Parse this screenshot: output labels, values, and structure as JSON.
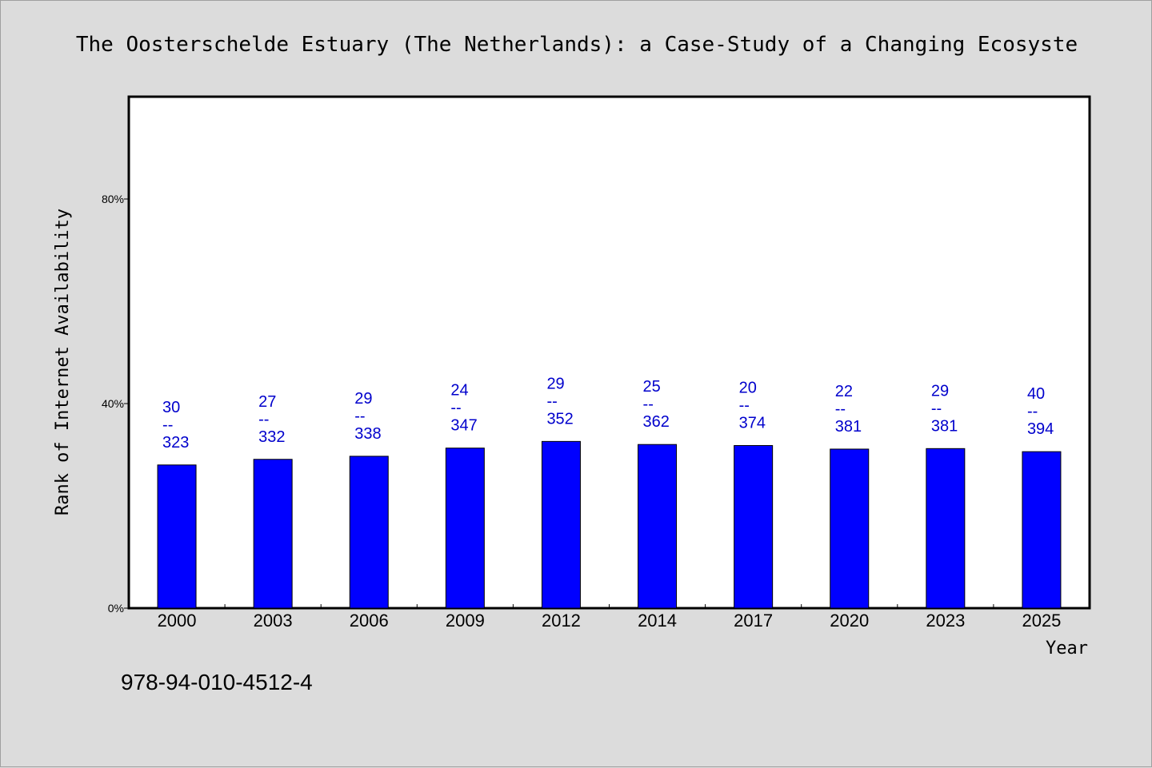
{
  "chart_data": {
    "type": "bar",
    "title": "The Oosterschelde Estuary (The Netherlands): a Case-Study of a Changing Ecosyste",
    "xlabel": "Year",
    "ylabel": "Rank of Internet Availability",
    "categories": [
      "2000",
      "2003",
      "2006",
      "2009",
      "2012",
      "2014",
      "2017",
      "2020",
      "2023",
      "2025"
    ],
    "values": [
      28.0,
      29.1,
      29.7,
      31.3,
      32.6,
      32.0,
      31.8,
      31.1,
      31.2,
      30.6
    ],
    "label_top": [
      "30",
      "27",
      "29",
      "24",
      "29",
      "25",
      "20",
      "22",
      "29",
      "40"
    ],
    "label_sep": "--",
    "label_bottom": [
      "323",
      "332",
      "338",
      "347",
      "352",
      "362",
      "374",
      "381",
      "381",
      "394"
    ],
    "ylim": [
      0,
      100
    ],
    "yticks": [
      {
        "value": 0,
        "label": "0%"
      },
      {
        "value": 40,
        "label": "40%"
      },
      {
        "value": 80,
        "label": "80%"
      }
    ],
    "bar_color": "#0000ff",
    "label_color": "#0000cc",
    "grid": false,
    "legend": "none"
  },
  "footer": {
    "isbn": "978-94-010-4512-4"
  }
}
